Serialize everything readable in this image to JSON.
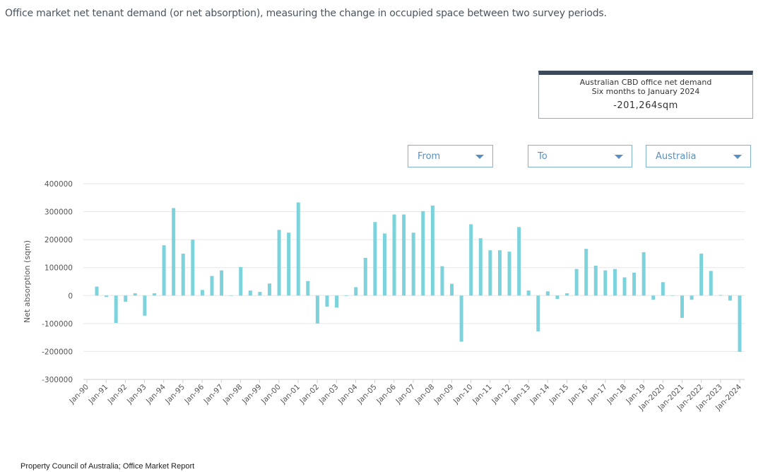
{
  "intro_text": "Office market net tenant demand (or net absorption), measuring the change in occupied space between two survey periods.",
  "summary": {
    "line1": "Australian CBD office net demand",
    "line2": "Six months to January 2024",
    "value": "-201,264sqm"
  },
  "filters": {
    "from_label": "From",
    "to_label": "To",
    "region_label": "Australia"
  },
  "source": "Property Council of Australia; Office Market Report",
  "colors": {
    "bar": "#7dd3dc",
    "grid": "#e6e6e6",
    "axis_text": "#555555"
  },
  "chart_data": {
    "type": "bar",
    "ylabel": "Net absorption (sqm)",
    "xlabel": "",
    "ylim": [
      -300000,
      400000
    ],
    "yticks": [
      400000,
      300000,
      200000,
      100000,
      0,
      -100000,
      -200000,
      -300000
    ],
    "xtick_labels": [
      "Jan-90",
      "Jan-91",
      "Jan-92",
      "Jan-93",
      "Jan-94",
      "Jan-95",
      "Jan-96",
      "Jan-97",
      "Jan-98",
      "Jan-99",
      "Jan-00",
      "Jan-01",
      "Jan-02",
      "Jan-03",
      "Jan-04",
      "Jan-05",
      "Jan-06",
      "Jan-07",
      "Jan-08",
      "Jan-09",
      "Jan-10",
      "Jan-11",
      "Jan-12",
      "Jan-13",
      "Jan-14",
      "Jan-15",
      "Jan-16",
      "Jan-17",
      "Jan-18",
      "Jan-19",
      "Jan-2020",
      "Jan-2021",
      "Jan-2022",
      "Jan-2023",
      "Jan-2024"
    ],
    "values": [
      32000,
      -5000,
      -98000,
      -22000,
      8000,
      -72000,
      8000,
      180000,
      313000,
      150000,
      200000,
      20000,
      70000,
      90000,
      0,
      102000,
      18000,
      13000,
      43000,
      235000,
      225000,
      333000,
      52000,
      -100000,
      -40000,
      -43000,
      -2000,
      30000,
      135000,
      263000,
      222000,
      290000,
      290000,
      225000,
      302000,
      322000,
      105000,
      42000,
      -165000,
      255000,
      205000,
      162000,
      162000,
      157000,
      245000,
      18000,
      -128000,
      15000,
      -12000,
      8000,
      95000,
      167000,
      107000,
      90000,
      95000,
      65000,
      82000,
      155000,
      -15000,
      48000,
      0,
      -80000,
      -15000,
      150000,
      88000,
      2000,
      -18000,
      -201264
    ]
  }
}
